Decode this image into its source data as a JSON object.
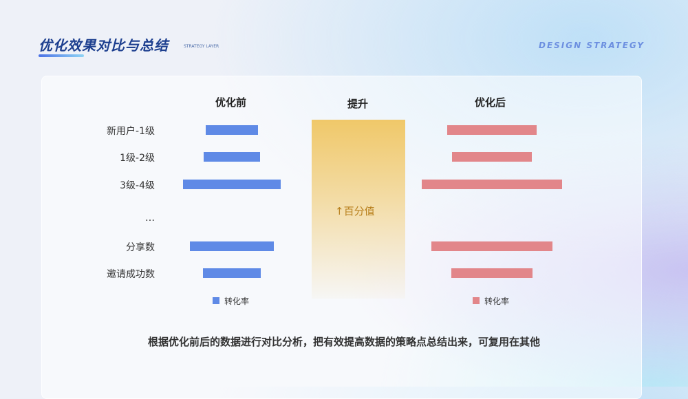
{
  "header": {
    "title": "优化效果对比与总结",
    "subtitle": "STRATEGY LAYER",
    "brand": "DESIGN STRATEGY"
  },
  "colors": {
    "before": "#5f8ae6",
    "after": "#e2868a",
    "highlight": "#f0c869",
    "title": "#1d3f8f"
  },
  "chart_data": {
    "type": "bar",
    "categories": [
      "新用户-1级",
      "1级-2级",
      "3级-4级",
      "…",
      "分享数",
      "邀请成功数"
    ],
    "series": [
      {
        "name": "优化前",
        "values": [
          37,
          40,
          70,
          null,
          60,
          41
        ]
      },
      {
        "name": "优化后",
        "values": [
          64,
          57,
          100,
          null,
          86,
          58
        ]
      }
    ],
    "column_headers": {
      "before": "优化前",
      "lift": "提升",
      "after": "优化后"
    },
    "lift_label": "↑百分值",
    "legend": {
      "before": "转化率",
      "after": "转化率"
    }
  },
  "footer": "根据优化前后的数据进行对比分析，把有效提高数据的策略点总结出来，可复用在其他"
}
